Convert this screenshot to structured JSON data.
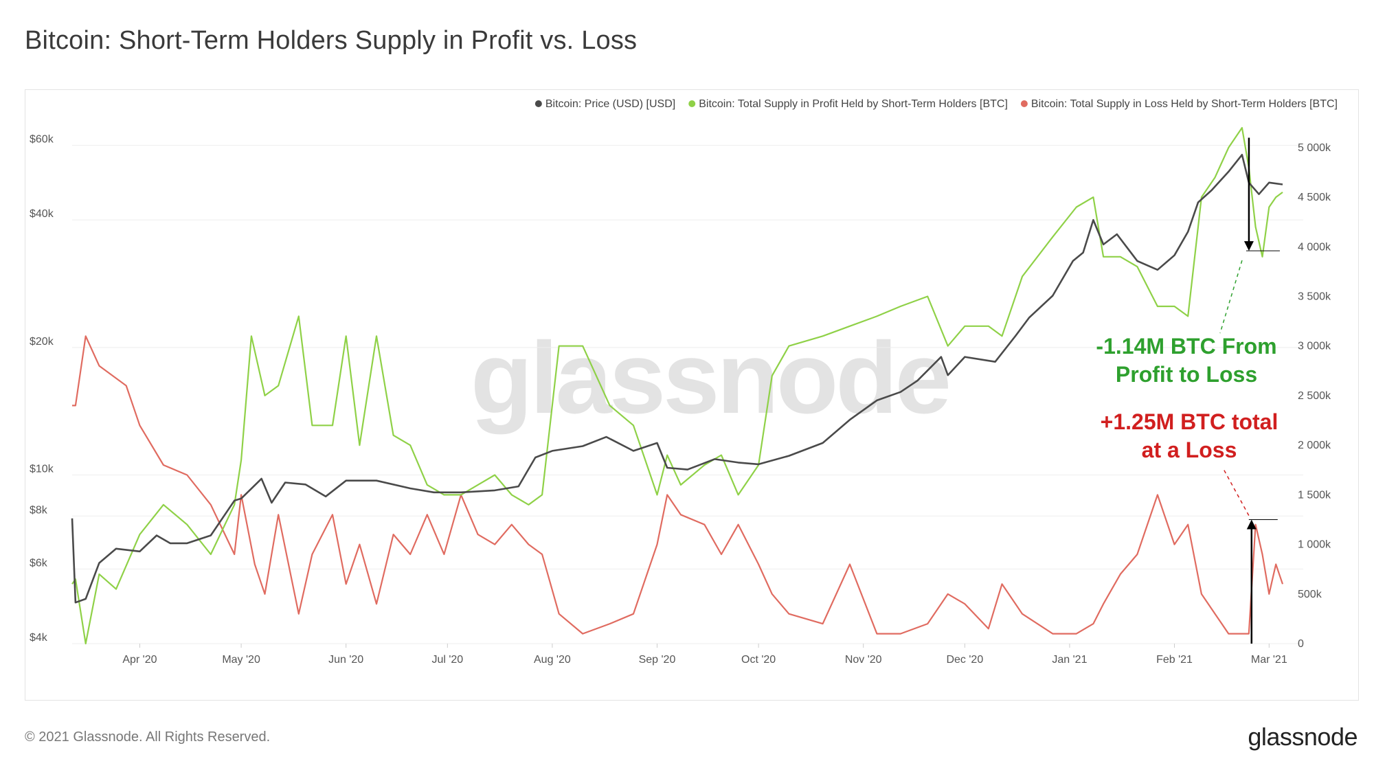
{
  "title": "Bitcoin: Short-Term Holders Supply in Profit vs. Loss",
  "footer": {
    "copyright": "© 2021 Glassnode. All Rights Reserved.",
    "logo": "glassnode"
  },
  "watermark": "glassnode",
  "colors": {
    "price": "#4a4a4a",
    "profit": "#8fd147",
    "loss": "#e06b60",
    "annotation_green": "#2ea02e",
    "annotation_red": "#d11f1f"
  },
  "chart_data": {
    "type": "line",
    "legend_position": "top-right",
    "grid": true,
    "legend": [
      {
        "label": "Bitcoin: Price (USD) [USD]",
        "color": "#4a4a4a"
      },
      {
        "label": "Bitcoin: Total Supply in Profit Held by Short-Term Holders [BTC]",
        "color": "#8fd147"
      },
      {
        "label": "Bitcoin: Total Supply in Loss Held by Short-Term Holders [BTC]",
        "color": "#e06b60"
      }
    ],
    "x_range": [
      "2020-03-12",
      "2021-03-05"
    ],
    "x_ticks": [
      {
        "label": "Apr '20",
        "date": "2020-04-01"
      },
      {
        "label": "May '20",
        "date": "2020-05-01"
      },
      {
        "label": "Jun '20",
        "date": "2020-06-01"
      },
      {
        "label": "Jul '20",
        "date": "2020-07-01"
      },
      {
        "label": "Aug '20",
        "date": "2020-08-01"
      },
      {
        "label": "Sep '20",
        "date": "2020-09-01"
      },
      {
        "label": "Oct '20",
        "date": "2020-10-01"
      },
      {
        "label": "Nov '20",
        "date": "2020-11-01"
      },
      {
        "label": "Dec '20",
        "date": "2020-12-01"
      },
      {
        "label": "Jan '21",
        "date": "2021-01-01"
      },
      {
        "label": "Feb '21",
        "date": "2021-02-01"
      },
      {
        "label": "Mar '21",
        "date": "2021-03-01"
      }
    ],
    "y_left": {
      "scale": "log",
      "range": [
        4000,
        66000
      ],
      "ticks": [
        {
          "label": "$4k",
          "value": 4000
        },
        {
          "label": "$6k",
          "value": 6000
        },
        {
          "label": "$8k",
          "value": 8000
        },
        {
          "label": "$10k",
          "value": 10000
        },
        {
          "label": "$20k",
          "value": 20000
        },
        {
          "label": "$40k",
          "value": 40000
        },
        {
          "label": "$60k",
          "value": 60000
        }
      ]
    },
    "y_right": {
      "scale": "linear",
      "range": [
        0,
        5200000
      ],
      "ticks": [
        {
          "label": "0",
          "value": 0
        },
        {
          "label": "500k",
          "value": 500000
        },
        {
          "label": "1 000k",
          "value": 1000000
        },
        {
          "label": "1 500k",
          "value": 1500000
        },
        {
          "label": "2 000k",
          "value": 2000000
        },
        {
          "label": "2 500k",
          "value": 2500000
        },
        {
          "label": "3 000k",
          "value": 3000000
        },
        {
          "label": "3 500k",
          "value": 3500000
        },
        {
          "label": "4 000k",
          "value": 4000000
        },
        {
          "label": "4 500k",
          "value": 4500000
        },
        {
          "label": "5 000k",
          "value": 5000000
        }
      ]
    },
    "series": [
      {
        "name": "Bitcoin: Price (USD) [USD]",
        "axis": "left",
        "x": [
          "2020-03-12",
          "2020-03-13",
          "2020-03-16",
          "2020-03-20",
          "2020-03-25",
          "2020-04-01",
          "2020-04-06",
          "2020-04-10",
          "2020-04-15",
          "2020-04-22",
          "2020-04-29",
          "2020-05-01",
          "2020-05-07",
          "2020-05-10",
          "2020-05-14",
          "2020-05-20",
          "2020-05-26",
          "2020-06-01",
          "2020-06-10",
          "2020-06-20",
          "2020-06-27",
          "2020-07-05",
          "2020-07-15",
          "2020-07-22",
          "2020-07-27",
          "2020-08-01",
          "2020-08-10",
          "2020-08-17",
          "2020-08-25",
          "2020-09-01",
          "2020-09-04",
          "2020-09-10",
          "2020-09-18",
          "2020-09-25",
          "2020-10-01",
          "2020-10-10",
          "2020-10-20",
          "2020-10-28",
          "2020-11-05",
          "2020-11-12",
          "2020-11-17",
          "2020-11-24",
          "2020-11-26",
          "2020-12-01",
          "2020-12-10",
          "2020-12-16",
          "2020-12-20",
          "2020-12-27",
          "2021-01-02",
          "2021-01-05",
          "2021-01-08",
          "2021-01-11",
          "2021-01-15",
          "2021-01-21",
          "2021-01-27",
          "2021-02-01",
          "2021-02-05",
          "2021-02-08",
          "2021-02-12",
          "2021-02-17",
          "2021-02-21",
          "2021-02-23",
          "2021-02-26",
          "2021-03-01",
          "2021-03-05"
        ],
        "values": [
          7900,
          5000,
          5100,
          6200,
          6700,
          6600,
          7200,
          6900,
          6900,
          7200,
          8700,
          8800,
          9800,
          8600,
          9600,
          9500,
          8900,
          9700,
          9700,
          9300,
          9100,
          9100,
          9200,
          9400,
          11000,
          11400,
          11700,
          12300,
          11400,
          11900,
          10400,
          10300,
          10900,
          10700,
          10600,
          11100,
          11900,
          13500,
          15000,
          15700,
          16700,
          19000,
          17200,
          19000,
          18500,
          21300,
          23500,
          26500,
          32000,
          33500,
          40000,
          35000,
          37000,
          32000,
          30500,
          33000,
          37500,
          44000,
          47000,
          52000,
          57000,
          49000,
          46000,
          49000,
          48500
        ]
      },
      {
        "name": "Bitcoin: Total Supply in Profit Held by Short-Term Holders [BTC]",
        "axis": "right",
        "x": [
          "2020-03-12",
          "2020-03-13",
          "2020-03-16",
          "2020-03-20",
          "2020-03-25",
          "2020-04-01",
          "2020-04-08",
          "2020-04-15",
          "2020-04-22",
          "2020-04-29",
          "2020-05-01",
          "2020-05-04",
          "2020-05-08",
          "2020-05-12",
          "2020-05-18",
          "2020-05-22",
          "2020-05-28",
          "2020-06-01",
          "2020-06-05",
          "2020-06-10",
          "2020-06-15",
          "2020-06-20",
          "2020-06-25",
          "2020-06-30",
          "2020-07-05",
          "2020-07-10",
          "2020-07-15",
          "2020-07-20",
          "2020-07-25",
          "2020-07-29",
          "2020-08-03",
          "2020-08-10",
          "2020-08-18",
          "2020-08-25",
          "2020-09-01",
          "2020-09-04",
          "2020-09-08",
          "2020-09-15",
          "2020-09-20",
          "2020-09-25",
          "2020-10-01",
          "2020-10-05",
          "2020-10-10",
          "2020-10-20",
          "2020-10-28",
          "2020-11-05",
          "2020-11-12",
          "2020-11-20",
          "2020-11-26",
          "2020-12-01",
          "2020-12-08",
          "2020-12-12",
          "2020-12-18",
          "2020-12-27",
          "2021-01-03",
          "2021-01-08",
          "2021-01-11",
          "2021-01-16",
          "2021-01-21",
          "2021-01-27",
          "2021-02-01",
          "2021-02-05",
          "2021-02-09",
          "2021-02-13",
          "2021-02-17",
          "2021-02-21",
          "2021-02-23",
          "2021-02-25",
          "2021-02-27",
          "2021-03-01",
          "2021-03-03",
          "2021-03-05"
        ],
        "values": [
          600000,
          650000,
          0,
          700000,
          550000,
          1100000,
          1400000,
          1200000,
          900000,
          1400000,
          1850000,
          3100000,
          2500000,
          2600000,
          3300000,
          2200000,
          2200000,
          3100000,
          2000000,
          3100000,
          2100000,
          2000000,
          1600000,
          1500000,
          1500000,
          1600000,
          1700000,
          1500000,
          1400000,
          1500000,
          3000000,
          3000000,
          2400000,
          2200000,
          1500000,
          1900000,
          1600000,
          1800000,
          1900000,
          1500000,
          1800000,
          2700000,
          3000000,
          3100000,
          3200000,
          3300000,
          3400000,
          3500000,
          3000000,
          3200000,
          3200000,
          3100000,
          3700000,
          4100000,
          4400000,
          4500000,
          3900000,
          3900000,
          3800000,
          3400000,
          3400000,
          3300000,
          4500000,
          4700000,
          5000000,
          5200000,
          4800000,
          4200000,
          3900000,
          4400000,
          4500000,
          4550000
        ]
      },
      {
        "name": "Bitcoin: Total Supply in Loss Held by Short-Term Holders [BTC]",
        "axis": "right",
        "x": [
          "2020-03-12",
          "2020-03-13",
          "2020-03-16",
          "2020-03-20",
          "2020-03-28",
          "2020-04-01",
          "2020-04-08",
          "2020-04-15",
          "2020-04-22",
          "2020-04-29",
          "2020-05-01",
          "2020-05-05",
          "2020-05-08",
          "2020-05-12",
          "2020-05-18",
          "2020-05-22",
          "2020-05-28",
          "2020-06-01",
          "2020-06-05",
          "2020-06-10",
          "2020-06-15",
          "2020-06-20",
          "2020-06-25",
          "2020-06-30",
          "2020-07-05",
          "2020-07-10",
          "2020-07-15",
          "2020-07-20",
          "2020-07-25",
          "2020-07-29",
          "2020-08-03",
          "2020-08-10",
          "2020-08-18",
          "2020-08-25",
          "2020-09-01",
          "2020-09-04",
          "2020-09-08",
          "2020-09-15",
          "2020-09-20",
          "2020-09-25",
          "2020-10-01",
          "2020-10-05",
          "2020-10-10",
          "2020-10-20",
          "2020-10-28",
          "2020-11-05",
          "2020-11-12",
          "2020-11-20",
          "2020-11-26",
          "2020-12-01",
          "2020-12-08",
          "2020-12-12",
          "2020-12-18",
          "2020-12-27",
          "2021-01-03",
          "2021-01-08",
          "2021-01-11",
          "2021-01-16",
          "2021-01-21",
          "2021-01-27",
          "2021-02-01",
          "2021-02-05",
          "2021-02-09",
          "2021-02-13",
          "2021-02-17",
          "2021-02-21",
          "2021-02-23",
          "2021-02-25",
          "2021-02-27",
          "2021-03-01",
          "2021-03-03",
          "2021-03-05"
        ],
        "values": [
          2400000,
          2400000,
          3100000,
          2800000,
          2600000,
          2200000,
          1800000,
          1700000,
          1400000,
          900000,
          1500000,
          800000,
          500000,
          1300000,
          300000,
          900000,
          1300000,
          600000,
          1000000,
          400000,
          1100000,
          900000,
          1300000,
          900000,
          1500000,
          1100000,
          1000000,
          1200000,
          1000000,
          900000,
          300000,
          100000,
          200000,
          300000,
          1000000,
          1500000,
          1300000,
          1200000,
          900000,
          1200000,
          800000,
          500000,
          300000,
          200000,
          800000,
          100000,
          100000,
          200000,
          500000,
          400000,
          150000,
          600000,
          300000,
          100000,
          100000,
          200000,
          400000,
          700000,
          900000,
          1500000,
          1000000,
          1200000,
          500000,
          300000,
          100000,
          100000,
          100000,
          1200000,
          900000,
          500000,
          800000,
          600000
        ]
      }
    ],
    "annotations": [
      {
        "lines": [
          "-1.14M BTC From",
          "Profit to Loss"
        ],
        "color": "#2ea02e",
        "from_value": 5100000,
        "to_value": 3960000,
        "date": "2021-02-21"
      },
      {
        "lines": [
          "+1.25M BTC total",
          "at a Loss"
        ],
        "color": "#d11f1f",
        "from_value": 0,
        "to_value": 1250000,
        "date": "2021-02-23"
      }
    ]
  }
}
